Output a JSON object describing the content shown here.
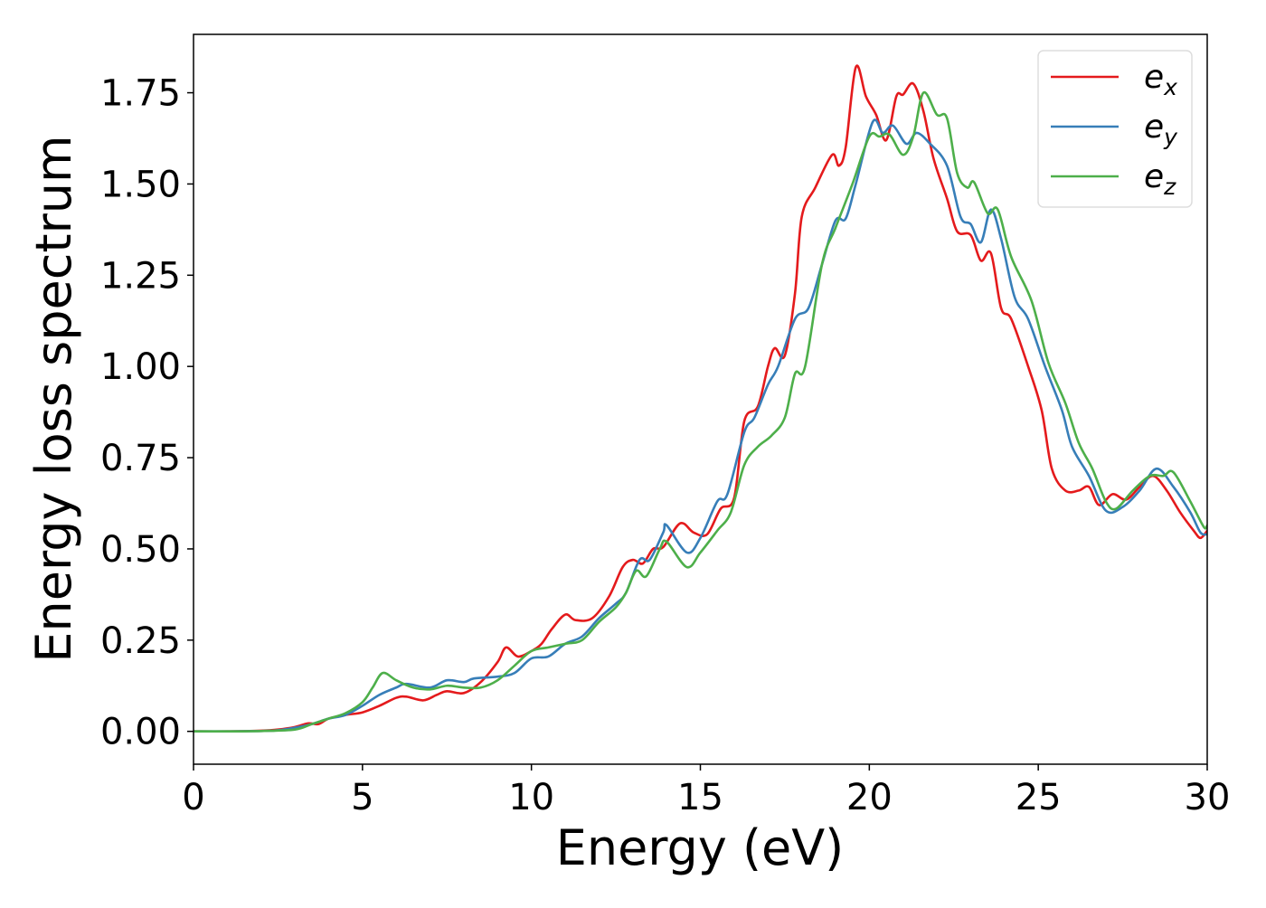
{
  "chart_data": {
    "type": "line",
    "title": "",
    "xlabel": "Energy (eV)",
    "ylabel": "Energy loss spectrum",
    "xlim": [
      0,
      30
    ],
    "ylim": [
      -0.09,
      1.91
    ],
    "xticks": [
      0,
      5,
      10,
      15,
      20,
      25,
      30
    ],
    "xtick_labels": [
      "0",
      "5",
      "10",
      "15",
      "20",
      "25",
      "30"
    ],
    "yticks": [
      0,
      0.25,
      0.5,
      0.75,
      1.0,
      1.25,
      1.5,
      1.75
    ],
    "ytick_labels": [
      "0.00",
      "0.25",
      "0.50",
      "0.75",
      "1.00",
      "1.25",
      "1.50",
      "1.75"
    ],
    "grid": false,
    "legend_placement": "top-right",
    "series": [
      {
        "name": "e_x",
        "label_base": "e",
        "label_sub": "x",
        "color": "#e41a1c",
        "points": [
          [
            0,
            0
          ],
          [
            1,
            0
          ],
          [
            2,
            0.002
          ],
          [
            2.5,
            0.005
          ],
          [
            3,
            0.012
          ],
          [
            3.4,
            0.022
          ],
          [
            3.7,
            0.02
          ],
          [
            4,
            0.035
          ],
          [
            4.5,
            0.045
          ],
          [
            5,
            0.052
          ],
          [
            5.5,
            0.07
          ],
          [
            6,
            0.092
          ],
          [
            6.3,
            0.095
          ],
          [
            6.8,
            0.085
          ],
          [
            7.2,
            0.1
          ],
          [
            7.5,
            0.11
          ],
          [
            8,
            0.105
          ],
          [
            8.5,
            0.135
          ],
          [
            9,
            0.19
          ],
          [
            9.25,
            0.23
          ],
          [
            9.6,
            0.205
          ],
          [
            10,
            0.22
          ],
          [
            10.3,
            0.24
          ],
          [
            10.6,
            0.28
          ],
          [
            11,
            0.32
          ],
          [
            11.3,
            0.305
          ],
          [
            11.8,
            0.31
          ],
          [
            12.3,
            0.37
          ],
          [
            12.7,
            0.45
          ],
          [
            13,
            0.47
          ],
          [
            13.3,
            0.46
          ],
          [
            13.6,
            0.5
          ],
          [
            13.9,
            0.505
          ],
          [
            14.4,
            0.57
          ],
          [
            14.8,
            0.545
          ],
          [
            15.2,
            0.54
          ],
          [
            15.6,
            0.61
          ],
          [
            16,
            0.64
          ],
          [
            16.3,
            0.85
          ],
          [
            16.7,
            0.89
          ],
          [
            17,
            1.0
          ],
          [
            17.2,
            1.05
          ],
          [
            17.5,
            1.03
          ],
          [
            17.8,
            1.2
          ],
          [
            18,
            1.41
          ],
          [
            18.4,
            1.49
          ],
          [
            18.9,
            1.58
          ],
          [
            19.1,
            1.55
          ],
          [
            19.3,
            1.6
          ],
          [
            19.6,
            1.82
          ],
          [
            19.9,
            1.74
          ],
          [
            20.2,
            1.69
          ],
          [
            20.5,
            1.62
          ],
          [
            20.8,
            1.74
          ],
          [
            21.0,
            1.745
          ],
          [
            21.3,
            1.775
          ],
          [
            21.6,
            1.7
          ],
          [
            21.9,
            1.57
          ],
          [
            22.3,
            1.46
          ],
          [
            22.6,
            1.37
          ],
          [
            23,
            1.36
          ],
          [
            23.3,
            1.29
          ],
          [
            23.6,
            1.31
          ],
          [
            23.9,
            1.16
          ],
          [
            24.2,
            1.13
          ],
          [
            24.7,
            1.0
          ],
          [
            25.1,
            0.88
          ],
          [
            25.4,
            0.72
          ],
          [
            25.8,
            0.66
          ],
          [
            26.2,
            0.66
          ],
          [
            26.5,
            0.67
          ],
          [
            26.8,
            0.62
          ],
          [
            27.2,
            0.65
          ],
          [
            27.6,
            0.635
          ],
          [
            28.0,
            0.67
          ],
          [
            28.4,
            0.7
          ],
          [
            28.8,
            0.66
          ],
          [
            29.2,
            0.6
          ],
          [
            29.6,
            0.55
          ],
          [
            29.8,
            0.53
          ],
          [
            30,
            0.55
          ]
        ]
      },
      {
        "name": "e_y",
        "label_base": "e",
        "label_sub": "y",
        "color": "#377eb8",
        "points": [
          [
            0,
            0
          ],
          [
            1,
            0
          ],
          [
            2,
            0.001
          ],
          [
            2.5,
            0.003
          ],
          [
            3,
            0.01
          ],
          [
            3.5,
            0.02
          ],
          [
            4,
            0.035
          ],
          [
            4.5,
            0.045
          ],
          [
            5,
            0.07
          ],
          [
            5.5,
            0.1
          ],
          [
            6,
            0.12
          ],
          [
            6.3,
            0.13
          ],
          [
            7,
            0.12
          ],
          [
            7.5,
            0.14
          ],
          [
            8,
            0.135
          ],
          [
            8.3,
            0.145
          ],
          [
            9,
            0.15
          ],
          [
            9.5,
            0.16
          ],
          [
            10,
            0.2
          ],
          [
            10.5,
            0.205
          ],
          [
            11,
            0.24
          ],
          [
            11.5,
            0.26
          ],
          [
            12,
            0.31
          ],
          [
            12.5,
            0.35
          ],
          [
            12.8,
            0.38
          ],
          [
            13.2,
            0.47
          ],
          [
            13.5,
            0.47
          ],
          [
            13.9,
            0.545
          ],
          [
            14,
            0.565
          ],
          [
            14.6,
            0.49
          ],
          [
            15,
            0.53
          ],
          [
            15.5,
            0.63
          ],
          [
            15.8,
            0.65
          ],
          [
            16.3,
            0.82
          ],
          [
            16.6,
            0.86
          ],
          [
            17,
            0.95
          ],
          [
            17.3,
            1.0
          ],
          [
            17.8,
            1.13
          ],
          [
            18.2,
            1.16
          ],
          [
            18.6,
            1.28
          ],
          [
            19,
            1.4
          ],
          [
            19.3,
            1.405
          ],
          [
            19.6,
            1.5
          ],
          [
            20.1,
            1.67
          ],
          [
            20.4,
            1.64
          ],
          [
            20.7,
            1.66
          ],
          [
            21.1,
            1.61
          ],
          [
            21.4,
            1.64
          ],
          [
            21.8,
            1.61
          ],
          [
            22.3,
            1.55
          ],
          [
            22.7,
            1.41
          ],
          [
            23.0,
            1.39
          ],
          [
            23.3,
            1.34
          ],
          [
            23.6,
            1.43
          ],
          [
            23.9,
            1.35
          ],
          [
            24.3,
            1.19
          ],
          [
            24.7,
            1.13
          ],
          [
            25.2,
            1.0
          ],
          [
            25.7,
            0.88
          ],
          [
            26.0,
            0.78
          ],
          [
            26.5,
            0.7
          ],
          [
            27,
            0.605
          ],
          [
            27.5,
            0.615
          ],
          [
            28,
            0.66
          ],
          [
            28.5,
            0.72
          ],
          [
            29,
            0.67
          ],
          [
            29.5,
            0.6
          ],
          [
            29.8,
            0.545
          ],
          [
            30,
            0.54
          ]
        ]
      },
      {
        "name": "e_z",
        "label_base": "e",
        "label_sub": "z",
        "color": "#4daf4a",
        "points": [
          [
            0,
            0
          ],
          [
            1,
            0
          ],
          [
            2,
            0.001
          ],
          [
            3,
            0.005
          ],
          [
            3.5,
            0.02
          ],
          [
            4,
            0.035
          ],
          [
            4.5,
            0.05
          ],
          [
            5,
            0.08
          ],
          [
            5.3,
            0.12
          ],
          [
            5.6,
            0.16
          ],
          [
            6,
            0.14
          ],
          [
            6.5,
            0.12
          ],
          [
            7,
            0.115
          ],
          [
            7.5,
            0.125
          ],
          [
            8,
            0.12
          ],
          [
            8.5,
            0.12
          ],
          [
            9,
            0.14
          ],
          [
            9.5,
            0.18
          ],
          [
            10,
            0.22
          ],
          [
            10.5,
            0.23
          ],
          [
            11,
            0.24
          ],
          [
            11.5,
            0.25
          ],
          [
            12,
            0.3
          ],
          [
            12.5,
            0.34
          ],
          [
            12.8,
            0.38
          ],
          [
            13.1,
            0.44
          ],
          [
            13.4,
            0.425
          ],
          [
            13.8,
            0.5
          ],
          [
            14,
            0.52
          ],
          [
            14.6,
            0.45
          ],
          [
            15,
            0.49
          ],
          [
            15.5,
            0.55
          ],
          [
            15.9,
            0.6
          ],
          [
            16.3,
            0.73
          ],
          [
            16.7,
            0.78
          ],
          [
            17.1,
            0.81
          ],
          [
            17.5,
            0.86
          ],
          [
            17.8,
            0.98
          ],
          [
            18.1,
            1.0
          ],
          [
            18.6,
            1.28
          ],
          [
            19,
            1.38
          ],
          [
            19.5,
            1.5
          ],
          [
            20,
            1.63
          ],
          [
            20.3,
            1.63
          ],
          [
            20.6,
            1.635
          ],
          [
            21.0,
            1.58
          ],
          [
            21.3,
            1.63
          ],
          [
            21.6,
            1.75
          ],
          [
            22.0,
            1.69
          ],
          [
            22.3,
            1.68
          ],
          [
            22.6,
            1.53
          ],
          [
            22.9,
            1.49
          ],
          [
            23.1,
            1.505
          ],
          [
            23.5,
            1.42
          ],
          [
            23.8,
            1.43
          ],
          [
            24.2,
            1.3
          ],
          [
            24.8,
            1.18
          ],
          [
            25.3,
            1.01
          ],
          [
            25.8,
            0.9
          ],
          [
            26.2,
            0.79
          ],
          [
            26.6,
            0.72
          ],
          [
            27,
            0.63
          ],
          [
            27.3,
            0.61
          ],
          [
            27.8,
            0.66
          ],
          [
            28.3,
            0.7
          ],
          [
            28.7,
            0.7
          ],
          [
            29,
            0.71
          ],
          [
            29.5,
            0.63
          ],
          [
            29.9,
            0.56
          ],
          [
            30,
            0.565
          ]
        ]
      }
    ]
  }
}
